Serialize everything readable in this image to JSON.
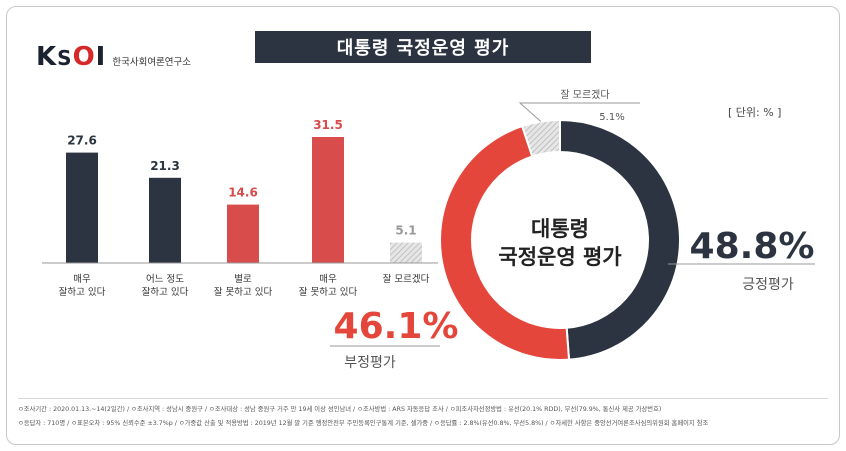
{
  "header": {
    "logo_text": "KSOI",
    "logo_name": "한국사회여론연구소",
    "title": "대통령 국정운영 평가"
  },
  "unit_label": "[ 단위: % ]",
  "chart_data": [
    {
      "type": "bar",
      "categories": [
        "매우\n잘하고 있다",
        "어느 정도\n잘하고 있다",
        "별로\n잘 못하고 있다",
        "매우\n잘 못하고 있다",
        "잘 모르겠다"
      ],
      "values": [
        27.6,
        21.3,
        14.6,
        31.5,
        5.1
      ],
      "value_labels": [
        "27.6",
        "21.3",
        "14.6",
        "31.5",
        "5.1"
      ],
      "colors": [
        "#2b3440",
        "#2b3440",
        "#d94c4c",
        "#d94c4c",
        "#d9d9d9"
      ],
      "ylim": [
        0,
        35
      ]
    },
    {
      "type": "pie",
      "center_label": "대통령\n국정운영 평가",
      "slices": [
        {
          "name": "긍정평가",
          "value": 48.8,
          "label": "48.8%",
          "color": "#2b3440"
        },
        {
          "name": "부정평가",
          "value": 46.1,
          "label": "46.1%",
          "color": "#e5463c"
        },
        {
          "name": "잘 모르겠다",
          "value": 5.1,
          "label": "5.1%",
          "color": "#dcdcdc"
        }
      ]
    }
  ],
  "footer": {
    "line1": "ㅇ조사기간 : 2020.01.13.~14(2일간) / ㅇ조사지역 : 성남시 중원구 / ㅇ조사대상 : 성남 중원구 거주 만 19세 이상 성인남녀 / ㅇ조사방법 : ARS 자동응답 조사 / ㅇ피조사자선정방법 : 유선(20.1% RDD), 무선(79.9%, 통신사 제공 가상번호)",
    "line2": "ㅇ응답자 : 710명 / ㅇ표본오차 : 95% 신뢰수준 ±3.7%p / ㅇ가중값 산출 및 적용방법 : 2019년 12월 말 기준 행정안전부 주민등록인구통계 기준, 셀가중 / ㅇ응답률 : 2.8%(유선0.8%, 무선5.8%) / ㅇ자세한 사항은 중앙선거여론조사심의위원회 홈페이지 참조"
  }
}
